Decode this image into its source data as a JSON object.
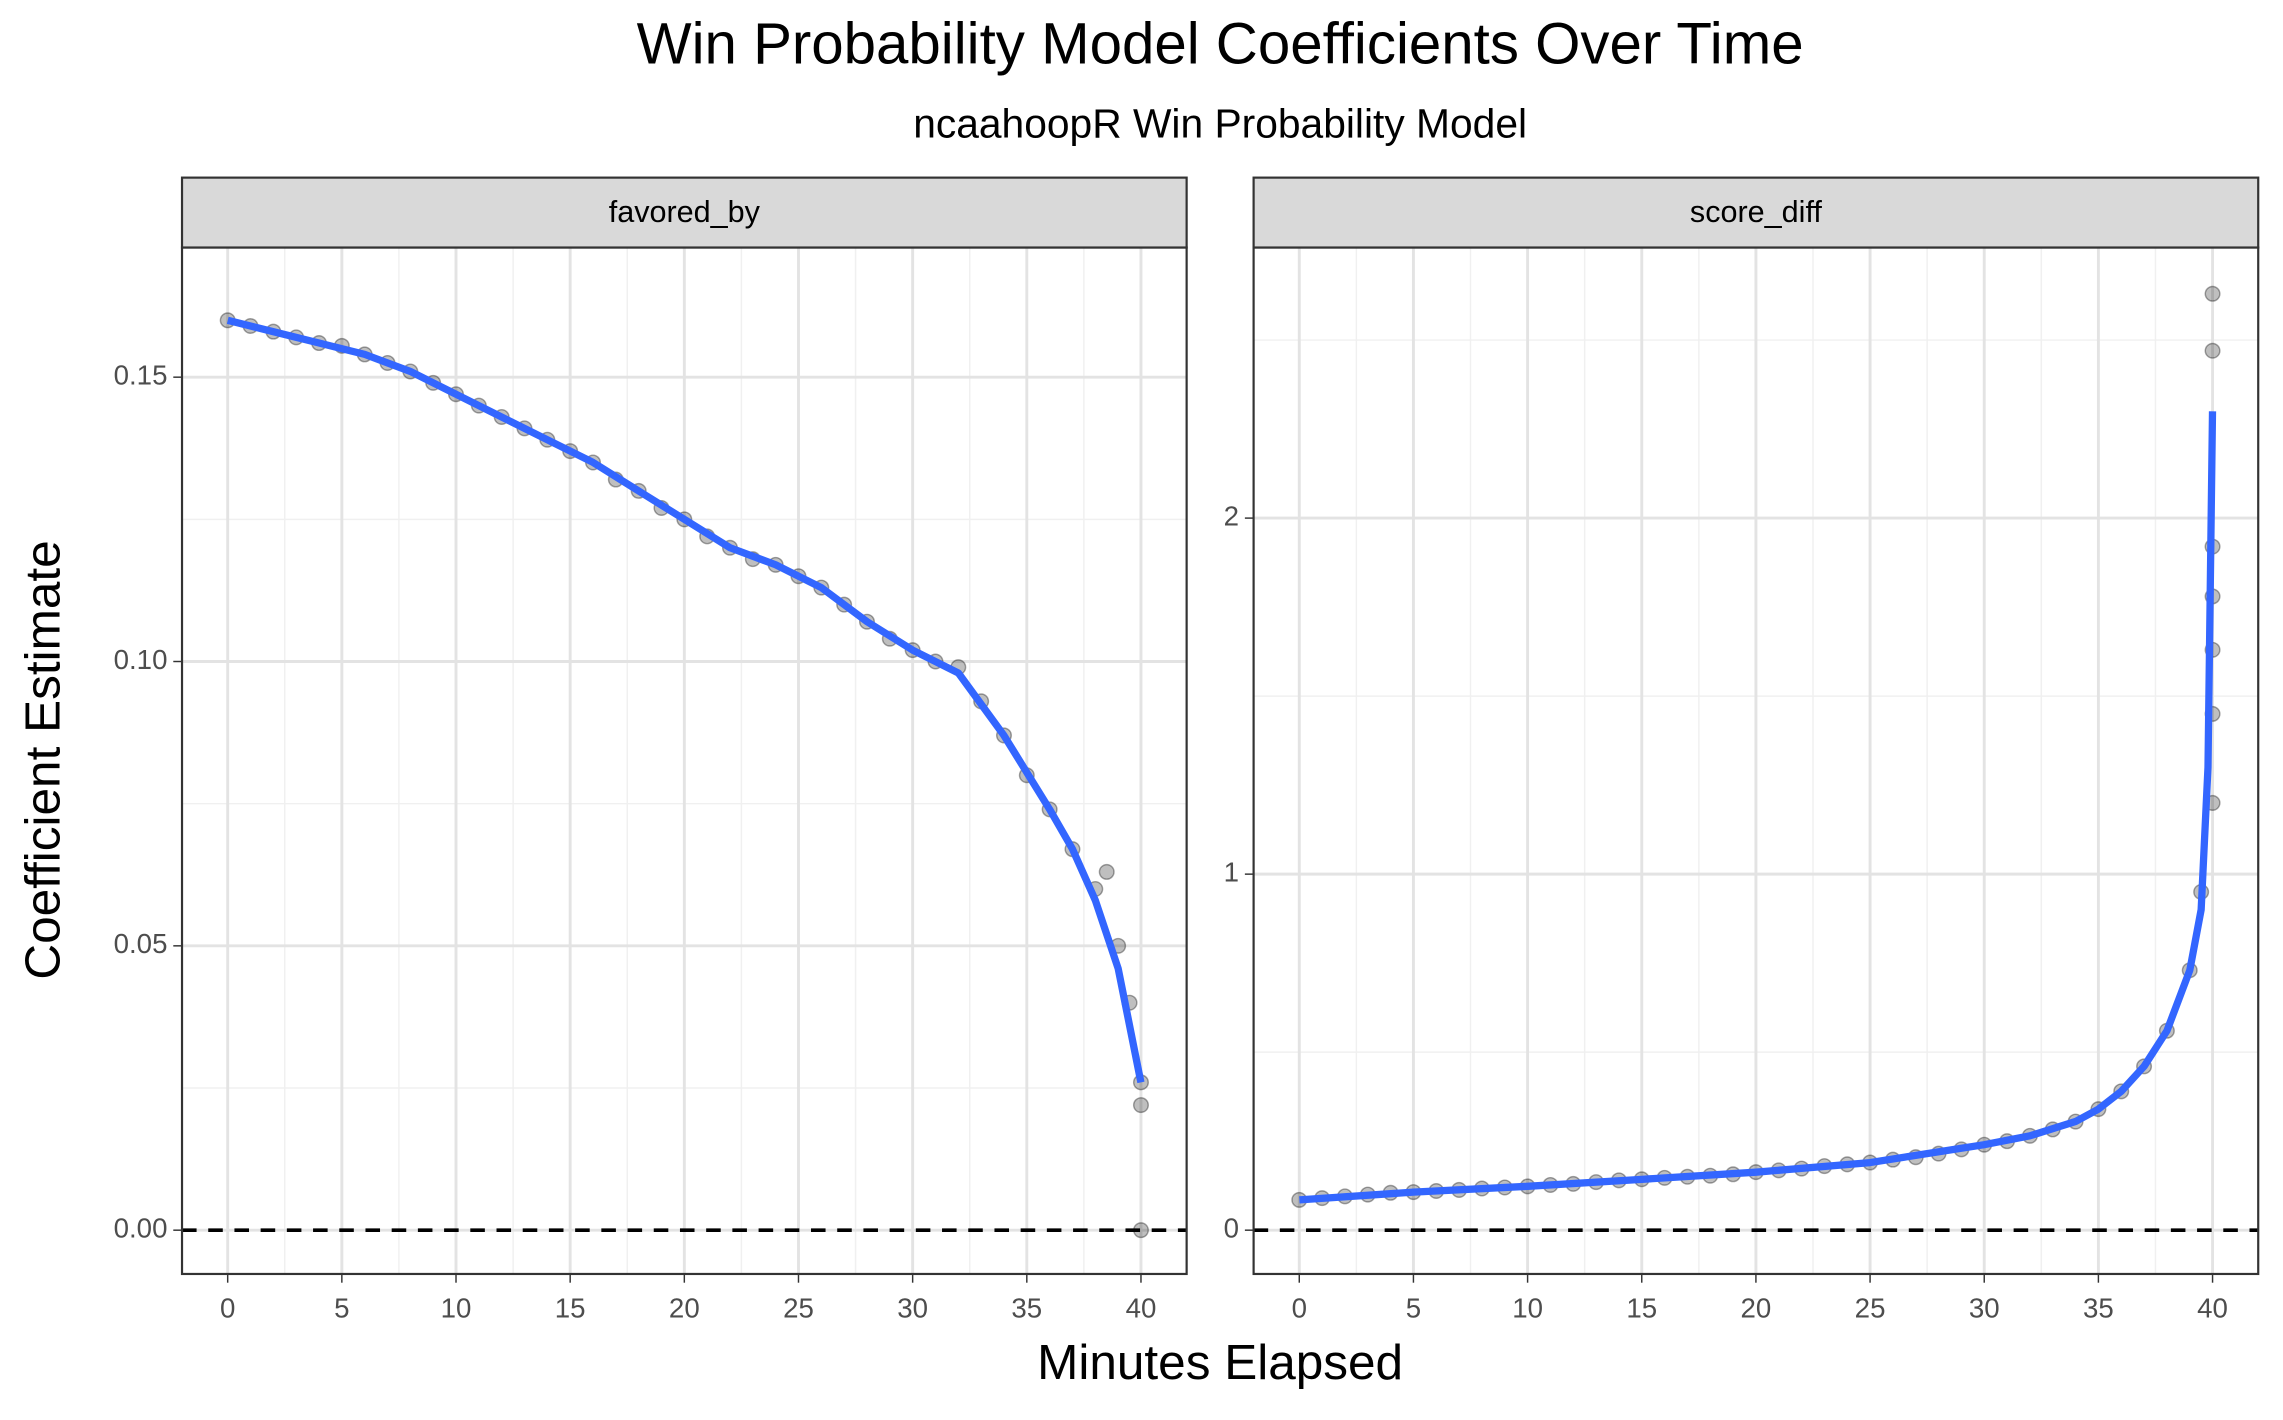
{
  "chart_data": {
    "type": "scatter",
    "title": "Win Probability Model Coefficients Over Time",
    "subtitle": "ncaahoopR Win Probability Model",
    "x_label": "Minutes Elapsed",
    "y_label": "Coefficient Estimate",
    "xlim": [
      -2,
      42
    ],
    "xticks": [
      0,
      5,
      10,
      15,
      20,
      25,
      30,
      35,
      40
    ],
    "grid": true,
    "point_color": "#000000",
    "line_color": "#3366ff",
    "hline": 0,
    "facets": [
      {
        "strip": "favored_by",
        "ylim": [
          -0.0077,
          0.1728
        ],
        "yticks": [
          {
            "value": 0,
            "label": "0.00"
          },
          {
            "value": 0.05,
            "label": "0.05"
          },
          {
            "value": 0.1,
            "label": "0.10"
          },
          {
            "value": 0.15,
            "label": "0.15"
          }
        ],
        "x": [
          0,
          1,
          2,
          3,
          4,
          5,
          6,
          7,
          8,
          9,
          10,
          11,
          12,
          13,
          14,
          15,
          16,
          17,
          18,
          19,
          20,
          21,
          22,
          23,
          24,
          25,
          26,
          27,
          28,
          29,
          30,
          31,
          32,
          33,
          34,
          35,
          36,
          37,
          38,
          38.5,
          39,
          39.5,
          40,
          40,
          40
        ],
        "values": [
          0.16,
          0.159,
          0.158,
          0.157,
          0.156,
          0.1555,
          0.154,
          0.1525,
          0.151,
          0.149,
          0.147,
          0.145,
          0.143,
          0.141,
          0.139,
          0.137,
          0.135,
          0.132,
          0.13,
          0.127,
          0.125,
          0.122,
          0.12,
          0.118,
          0.117,
          0.115,
          0.113,
          0.11,
          0.107,
          0.104,
          0.102,
          0.1,
          0.099,
          0.093,
          0.087,
          0.08,
          0.074,
          0.067,
          0.06,
          0.063,
          0.05,
          0.04,
          0.026,
          0.022,
          0.0
        ],
        "fit_x": [
          0,
          2,
          4,
          6,
          8,
          10,
          12,
          14,
          16,
          18,
          20,
          22,
          24,
          26,
          28,
          30,
          32,
          34,
          36,
          37,
          38,
          39,
          40
        ],
        "fit_values": [
          0.16,
          0.158,
          0.156,
          0.154,
          0.151,
          0.147,
          0.143,
          0.139,
          0.135,
          0.13,
          0.125,
          0.12,
          0.117,
          0.113,
          0.107,
          0.102,
          0.098,
          0.087,
          0.074,
          0.067,
          0.058,
          0.046,
          0.026
        ]
      },
      {
        "strip": "score_diff",
        "ylim": [
          -0.123,
          2.76
        ],
        "yticks": [
          0,
          1,
          2
        ],
        "x": [
          0,
          1,
          2,
          3,
          4,
          5,
          6,
          7,
          8,
          9,
          10,
          11,
          12,
          13,
          14,
          15,
          16,
          17,
          18,
          19,
          20,
          21,
          22,
          23,
          24,
          25,
          26,
          27,
          28,
          29,
          30,
          31,
          32,
          33,
          34,
          35,
          36,
          37,
          38,
          39,
          39.5,
          40,
          40,
          40,
          40,
          40,
          40,
          40
        ],
        "values": [
          0.085,
          0.09,
          0.095,
          0.1,
          0.105,
          0.107,
          0.11,
          0.113,
          0.117,
          0.12,
          0.123,
          0.127,
          0.13,
          0.135,
          0.14,
          0.143,
          0.147,
          0.15,
          0.153,
          0.157,
          0.163,
          0.168,
          0.173,
          0.18,
          0.185,
          0.19,
          0.198,
          0.205,
          0.215,
          0.227,
          0.24,
          0.25,
          0.265,
          0.283,
          0.305,
          0.34,
          0.39,
          0.46,
          0.56,
          0.73,
          0.95,
          1.2,
          1.45,
          1.63,
          1.78,
          1.92,
          2.47,
          2.63
        ],
        "fit_x": [
          0,
          5,
          10,
          15,
          20,
          25,
          30,
          32,
          34,
          35,
          36,
          37,
          38,
          39,
          39.5,
          39.8,
          40
        ],
        "fit_values": [
          0.085,
          0.107,
          0.123,
          0.143,
          0.163,
          0.19,
          0.24,
          0.265,
          0.305,
          0.34,
          0.39,
          0.46,
          0.56,
          0.73,
          0.9,
          1.3,
          2.3
        ]
      }
    ]
  }
}
